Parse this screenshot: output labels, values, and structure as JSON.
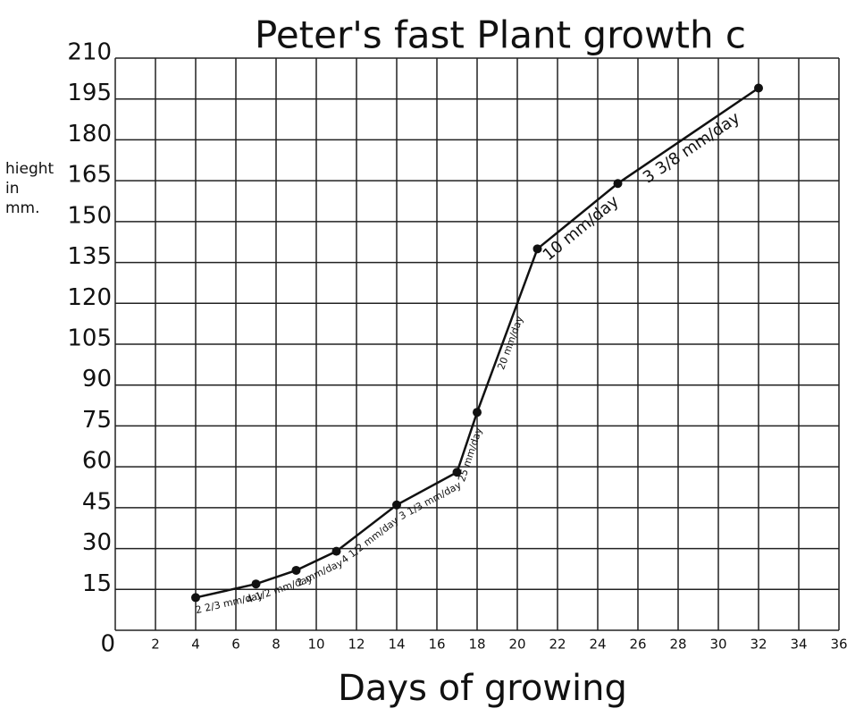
{
  "chart_data": {
    "type": "line",
    "title": "Peter's fast Plant growth c",
    "x_label": "Days of growing",
    "y_label": "hieght in mm.",
    "x": [
      4,
      7,
      9,
      11,
      14,
      17,
      18,
      21,
      25,
      32
    ],
    "series": [
      {
        "name": "height",
        "color": "#111111",
        "values": [
          12,
          17,
          22,
          29,
          46,
          58,
          80,
          140,
          164,
          199
        ]
      }
    ],
    "annotations": [
      "2 2/3 mm/day",
      "4 1/2 mm/day",
      "2 mm/day",
      "4 1/2 mm/day",
      "3 1/3 mm/day",
      "25 mm/day",
      "20 mm/day",
      "10 mm/day",
      "3 3/8 mm/day"
    ],
    "xlim": [
      0,
      36
    ],
    "xticks": [
      0,
      2,
      4,
      6,
      8,
      10,
      12,
      14,
      16,
      18,
      20,
      22,
      24,
      26,
      28,
      30,
      32,
      34,
      36
    ],
    "ylim": [
      0,
      210
    ],
    "yticks": [
      0,
      15,
      30,
      45,
      60,
      75,
      90,
      105,
      120,
      135,
      150,
      165,
      180,
      195,
      210
    ],
    "grid": true
  }
}
